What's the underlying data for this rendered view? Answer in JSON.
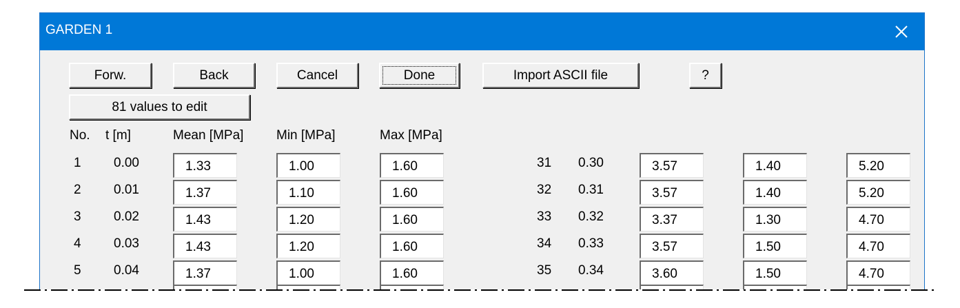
{
  "title": "GARDEN 1",
  "buttons": [
    "Forw.",
    "Back",
    "Cancel",
    "Done",
    "Import ASCII file",
    "?"
  ],
  "edit_count_button": "81 values to edit",
  "columns": [
    "No.",
    "t [m]",
    "Mean [MPa]",
    "Min [MPa]",
    "Max [MPa]"
  ],
  "rows_left": [
    [
      "1",
      "0.00",
      "1.33",
      "1.00",
      "1.60"
    ],
    [
      "2",
      "0.01",
      "1.37",
      "1.10",
      "1.60"
    ],
    [
      "3",
      "0.02",
      "1.43",
      "1.20",
      "1.60"
    ],
    [
      "4",
      "0.03",
      "1.43",
      "1.20",
      "1.60"
    ],
    [
      "5",
      "0.04",
      "1.37",
      "1.00",
      "1.60"
    ]
  ],
  "rows_right": [
    [
      "31",
      "0.30",
      "3.57",
      "1.40",
      "5.20"
    ],
    [
      "32",
      "0.31",
      "3.57",
      "1.40",
      "5.20"
    ],
    [
      "33",
      "0.32",
      "3.37",
      "1.30",
      "4.70"
    ],
    [
      "34",
      "0.33",
      "3.57",
      "1.50",
      "4.70"
    ],
    [
      "35",
      "0.34",
      "3.60",
      "1.50",
      "4.70"
    ]
  ]
}
